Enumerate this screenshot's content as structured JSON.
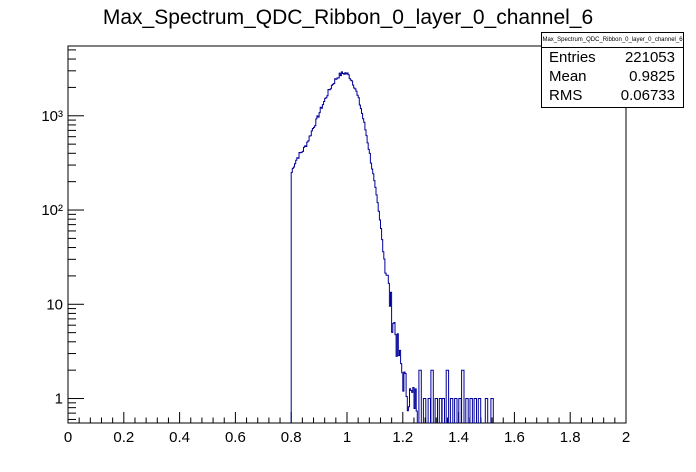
{
  "chart_data": {
    "type": "histogram",
    "title": "Max_Spectrum_QDC_Ribbon_0_layer_0_channel_6",
    "xlabel": "",
    "ylabel": "",
    "xlim": [
      0,
      2
    ],
    "ylim": [
      0.55,
      5500
    ],
    "yscale": "log",
    "x_ticks": [
      "0",
      "0.2",
      "0.4",
      "0.6",
      "0.8",
      "1",
      "1.2",
      "1.4",
      "1.6",
      "1.8",
      "2"
    ],
    "y_ticks": [
      {
        "value": 1,
        "label": "1"
      },
      {
        "value": 10,
        "label": "10"
      },
      {
        "value": 100,
        "label": "10²"
      },
      {
        "value": 1000,
        "label": "10³"
      }
    ],
    "line_color": "#000099",
    "stats": {
      "title": "Max_Spectrum_QDC_Ribbon_0_layer_0_channel_6",
      "rows": [
        {
          "label": "Entries",
          "value": "221053"
        },
        {
          "label": "Mean",
          "value": "0.9825"
        },
        {
          "label": "RMS",
          "value": "0.06733"
        }
      ]
    },
    "profile": [
      [
        0.8,
        240
      ],
      [
        0.81,
        300
      ],
      [
        0.82,
        350
      ],
      [
        0.83,
        390
      ],
      [
        0.84,
        420
      ],
      [
        0.85,
        470
      ],
      [
        0.86,
        540
      ],
      [
        0.87,
        640
      ],
      [
        0.88,
        760
      ],
      [
        0.89,
        880
      ],
      [
        0.9,
        1050
      ],
      [
        0.91,
        1250
      ],
      [
        0.92,
        1450
      ],
      [
        0.93,
        1700
      ],
      [
        0.94,
        1950
      ],
      [
        0.95,
        2200
      ],
      [
        0.96,
        2450
      ],
      [
        0.97,
        2650
      ],
      [
        0.98,
        2780
      ],
      [
        0.99,
        2850
      ],
      [
        1.0,
        2800
      ],
      [
        1.01,
        2600
      ],
      [
        1.02,
        2300
      ],
      [
        1.03,
        1950
      ],
      [
        1.04,
        1550
      ],
      [
        1.05,
        1200
      ],
      [
        1.06,
        880
      ],
      [
        1.07,
        620
      ],
      [
        1.08,
        420
      ],
      [
        1.09,
        280
      ],
      [
        1.1,
        180
      ],
      [
        1.11,
        115
      ],
      [
        1.12,
        70
      ],
      [
        1.13,
        42
      ],
      [
        1.14,
        25
      ],
      [
        1.15,
        14
      ],
      [
        1.16,
        9
      ],
      [
        1.17,
        6
      ],
      [
        1.18,
        3.8
      ],
      [
        1.19,
        2.5
      ],
      [
        1.2,
        1.8
      ],
      [
        1.21,
        1.4
      ],
      [
        1.22,
        1.15
      ],
      [
        1.23,
        1.05
      ],
      [
        1.24,
        1.0
      ],
      [
        1.25,
        1.0
      ]
    ],
    "isolated_bins": [
      {
        "x": 1.262,
        "y": 2
      },
      {
        "x": 1.278,
        "y": 1
      },
      {
        "x": 1.295,
        "y": 1
      },
      {
        "x": 1.305,
        "y": 2
      },
      {
        "x": 1.32,
        "y": 1
      },
      {
        "x": 1.335,
        "y": 1
      },
      {
        "x": 1.345,
        "y": 1
      },
      {
        "x": 1.36,
        "y": 2
      },
      {
        "x": 1.375,
        "y": 1
      },
      {
        "x": 1.39,
        "y": 1
      },
      {
        "x": 1.405,
        "y": 1
      },
      {
        "x": 1.415,
        "y": 2
      },
      {
        "x": 1.43,
        "y": 1
      },
      {
        "x": 1.445,
        "y": 1
      },
      {
        "x": 1.46,
        "y": 1
      },
      {
        "x": 1.475,
        "y": 1
      },
      {
        "x": 1.5,
        "y": 1
      },
      {
        "x": 1.52,
        "y": 1
      }
    ]
  }
}
